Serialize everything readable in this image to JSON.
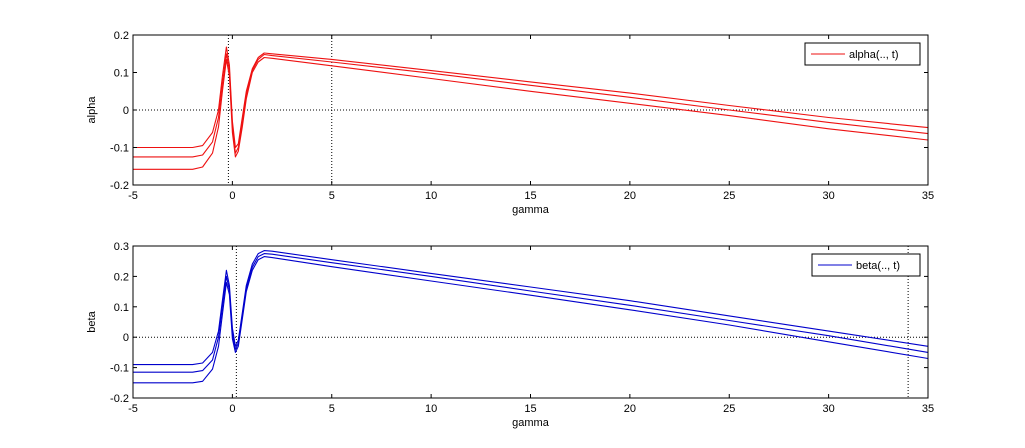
{
  "chart_data": [
    {
      "type": "line",
      "xlabel": "gamma",
      "ylabel": "alpha",
      "xlim": [
        -5,
        35
      ],
      "ylim": [
        -0.2,
        0.2
      ],
      "xticks": [
        -5,
        0,
        5,
        10,
        15,
        20,
        25,
        30,
        35
      ],
      "xtick_labels": [
        "-5",
        "0",
        "5",
        "10",
        "15",
        "20",
        "25",
        "30",
        "35"
      ],
      "yticks": [
        -0.2,
        -0.1,
        0,
        0.1,
        0.2
      ],
      "ytick_labels": [
        "-0.2",
        "-0.1",
        "0",
        "0.1",
        "0.2"
      ],
      "legend": {
        "label": "alpha(.., t)",
        "position": "top-right"
      },
      "line_color": "#ee1111",
      "ref_hline": 0,
      "ref_vlines": [
        -0.2,
        5
      ],
      "series": [
        {
          "x": [
            -5,
            -2,
            -1.5,
            -1,
            -0.7,
            -0.5,
            -0.3,
            -0.15,
            0,
            0.15,
            0.3,
            0.5,
            0.7,
            1,
            1.3,
            1.6,
            2,
            5,
            10,
            15,
            20,
            25,
            30,
            35
          ],
          "values": [
            -0.1,
            -0.1,
            -0.095,
            -0.06,
            0.0,
            0.09,
            0.168,
            0.12,
            -0.03,
            -0.1,
            -0.09,
            -0.02,
            0.05,
            0.11,
            0.14,
            0.152,
            0.15,
            0.135,
            0.105,
            0.075,
            0.045,
            0.012,
            -0.02,
            -0.047
          ]
        },
        {
          "x": [
            -5,
            -2,
            -1.5,
            -1,
            -0.7,
            -0.5,
            -0.3,
            -0.15,
            0,
            0.15,
            0.3,
            0.5,
            0.7,
            1,
            1.3,
            1.6,
            2,
            5,
            10,
            15,
            20,
            25,
            30,
            35
          ],
          "values": [
            -0.125,
            -0.125,
            -0.12,
            -0.085,
            -0.02,
            0.07,
            0.15,
            0.105,
            -0.045,
            -0.115,
            -0.1,
            -0.035,
            0.04,
            0.105,
            0.135,
            0.148,
            0.145,
            0.128,
            0.098,
            0.066,
            0.034,
            0.0,
            -0.033,
            -0.063
          ]
        },
        {
          "x": [
            -5,
            -2,
            -1.5,
            -1,
            -0.7,
            -0.5,
            -0.3,
            -0.15,
            0,
            0.15,
            0.3,
            0.5,
            0.7,
            1,
            1.3,
            1.6,
            2,
            5,
            10,
            15,
            20,
            25,
            30,
            35
          ],
          "values": [
            -0.158,
            -0.158,
            -0.152,
            -0.115,
            -0.045,
            0.05,
            0.135,
            0.09,
            -0.06,
            -0.125,
            -0.11,
            -0.045,
            0.03,
            0.1,
            0.128,
            0.14,
            0.138,
            0.118,
            0.084,
            0.05,
            0.018,
            -0.015,
            -0.05,
            -0.08
          ]
        }
      ]
    },
    {
      "type": "line",
      "xlabel": "gamma",
      "ylabel": "beta",
      "xlim": [
        -5,
        35
      ],
      "ylim": [
        -0.2,
        0.3
      ],
      "xticks": [
        -5,
        0,
        5,
        10,
        15,
        20,
        25,
        30,
        35
      ],
      "xtick_labels": [
        "-5",
        "0",
        "5",
        "10",
        "15",
        "20",
        "25",
        "30",
        "35"
      ],
      "yticks": [
        -0.2,
        -0.1,
        0,
        0.1,
        0.2,
        0.3
      ],
      "ytick_labels": [
        "-0.2",
        "-0.1",
        "0",
        "0.1",
        "0.2",
        "0.3"
      ],
      "legend": {
        "label": "beta(.., t)",
        "position": "top-right"
      },
      "line_color": "#0000cc",
      "ref_hline": 0,
      "ref_vlines": [
        0.2,
        34
      ],
      "series": [
        {
          "x": [
            -5,
            -2,
            -1.5,
            -1,
            -0.7,
            -0.5,
            -0.3,
            -0.15,
            0,
            0.15,
            0.3,
            0.5,
            0.7,
            1,
            1.3,
            1.6,
            2,
            5,
            10,
            15,
            20,
            25,
            30,
            35
          ],
          "values": [
            -0.09,
            -0.09,
            -0.085,
            -0.05,
            0.02,
            0.12,
            0.22,
            0.17,
            0.03,
            -0.03,
            -0.01,
            0.08,
            0.17,
            0.24,
            0.275,
            0.285,
            0.283,
            0.255,
            0.21,
            0.165,
            0.12,
            0.07,
            0.02,
            -0.03
          ]
        },
        {
          "x": [
            -5,
            -2,
            -1.5,
            -1,
            -0.7,
            -0.5,
            -0.3,
            -0.15,
            0,
            0.15,
            0.3,
            0.5,
            0.7,
            1,
            1.3,
            1.6,
            2,
            5,
            10,
            15,
            20,
            25,
            30,
            35
          ],
          "values": [
            -0.115,
            -0.115,
            -0.11,
            -0.075,
            0.0,
            0.1,
            0.2,
            0.155,
            0.01,
            -0.04,
            -0.02,
            0.07,
            0.16,
            0.23,
            0.265,
            0.275,
            0.273,
            0.245,
            0.2,
            0.152,
            0.105,
            0.055,
            0.005,
            -0.05
          ]
        },
        {
          "x": [
            -5,
            -2,
            -1.5,
            -1,
            -0.7,
            -0.5,
            -0.3,
            -0.15,
            0,
            0.15,
            0.3,
            0.5,
            0.7,
            1,
            1.3,
            1.6,
            2,
            5,
            10,
            15,
            20,
            25,
            30,
            35
          ],
          "values": [
            -0.15,
            -0.15,
            -0.145,
            -0.105,
            -0.03,
            0.075,
            0.18,
            0.14,
            -0.005,
            -0.05,
            -0.03,
            0.06,
            0.15,
            0.22,
            0.255,
            0.265,
            0.262,
            0.232,
            0.185,
            0.138,
            0.09,
            0.04,
            -0.015,
            -0.07
          ]
        }
      ]
    }
  ]
}
